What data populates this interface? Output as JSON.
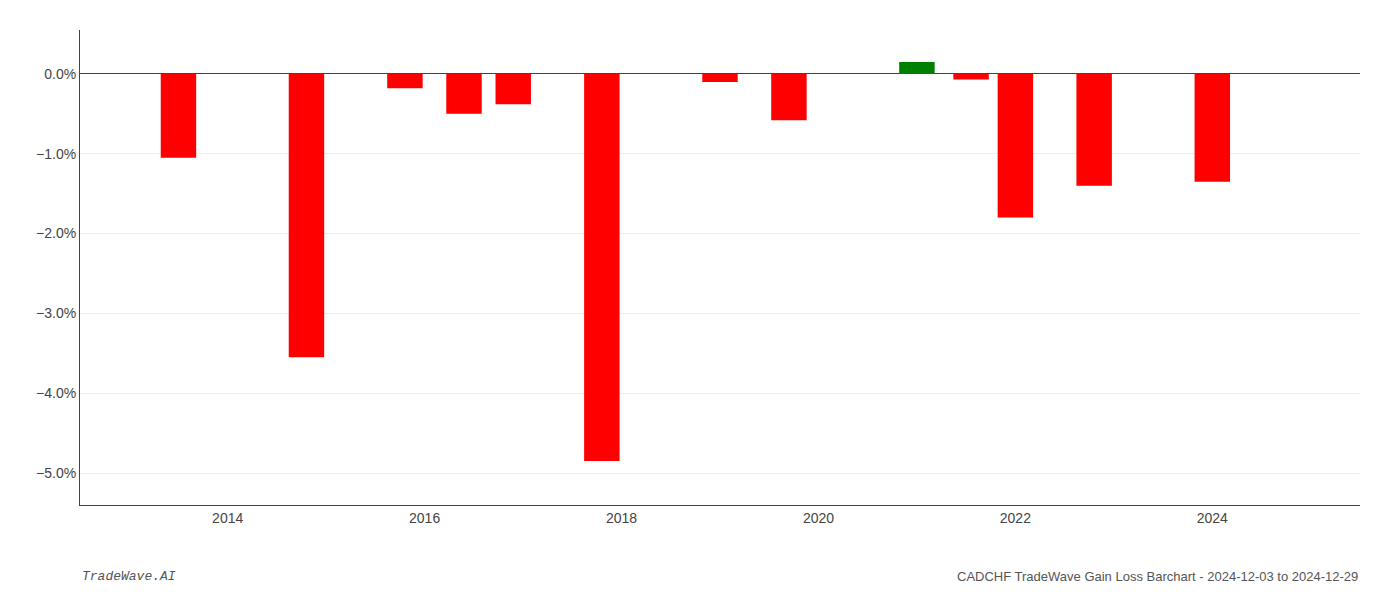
{
  "chart_data": {
    "type": "bar",
    "title": "CADCHF TradeWave Gain Loss Barchart - 2024-12-03 to 2024-12-29",
    "annotations": [
      "TradeWave.AI"
    ],
    "x": [
      2013.5,
      2014.8,
      2015.8,
      2016.4,
      2016.9,
      2017.8,
      2019.0,
      2019.7,
      2021.0,
      2021.55,
      2022.0,
      2022.8,
      2024.0
    ],
    "values": [
      -1.05,
      -3.55,
      -0.18,
      -0.5,
      -0.38,
      -4.85,
      -0.1,
      -0.58,
      0.15,
      -0.07,
      -1.8,
      -1.4,
      -1.35
    ],
    "colors": [
      "#ff0000",
      "#ff0000",
      "#ff0000",
      "#ff0000",
      "#ff0000",
      "#ff0000",
      "#ff0000",
      "#ff0000",
      "#008000",
      "#ff0000",
      "#ff0000",
      "#ff0000",
      "#ff0000"
    ],
    "xlim": [
      2012.5,
      2025.5
    ],
    "xticks": [
      2014,
      2016,
      2018,
      2020,
      2022,
      2024
    ],
    "ylim": [
      -5.4,
      0.55
    ],
    "yticks": [
      {
        "value": 0.0,
        "label": "0.0%"
      },
      {
        "value": -1.0,
        "label": "−1.0%"
      },
      {
        "value": -2.0,
        "label": "−2.0%"
      },
      {
        "value": -3.0,
        "label": "−3.0%"
      },
      {
        "value": -4.0,
        "label": "−4.0%"
      },
      {
        "value": -5.0,
        "label": "−5.0%"
      }
    ],
    "grid": true
  }
}
